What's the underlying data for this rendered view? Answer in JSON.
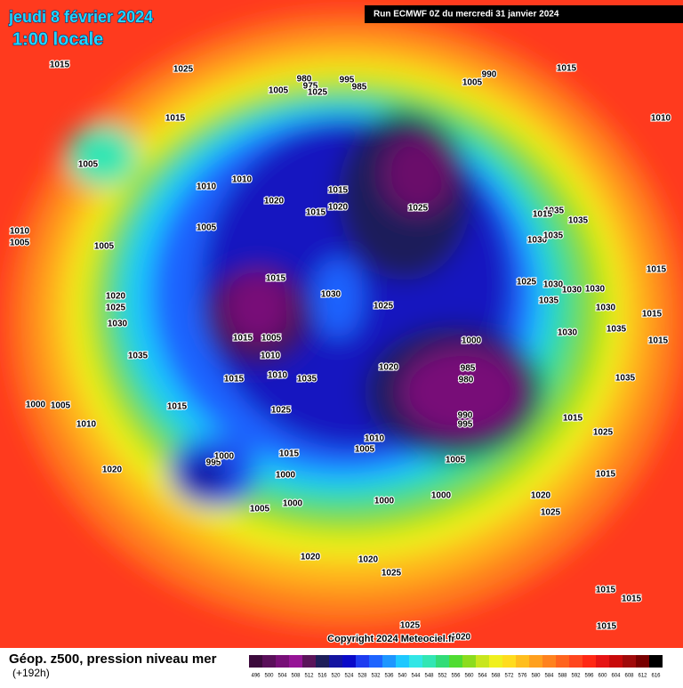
{
  "header": {
    "date": "jeudi 8 février 2024",
    "time": "1:00 locale",
    "run": "Run ECMWF 0Z du mercredi 31 janvier 2024"
  },
  "copyright": "Copyright 2024 Meteociel.fr",
  "footer": {
    "title": "Géop. z500, pression niveau mer",
    "lead": "(+192h)"
  },
  "colorbar": {
    "ticks": [
      496,
      500,
      504,
      508,
      512,
      516,
      520,
      524,
      528,
      532,
      536,
      540,
      544,
      548,
      552,
      556,
      560,
      564,
      568,
      572,
      576,
      580,
      584,
      588,
      592,
      596,
      600,
      604,
      608,
      612,
      616
    ],
    "colors": [
      "#3c0a3c",
      "#5a0f5a",
      "#780f78",
      "#961496",
      "#5a145a",
      "#1e1e5a",
      "#1414a0",
      "#0a0ac8",
      "#1e3cf0",
      "#1e64ff",
      "#1e96ff",
      "#1ec8ff",
      "#32e6e6",
      "#32e6b4",
      "#32dc78",
      "#50dc32",
      "#8cdc1e",
      "#c8e61e",
      "#f0f01e",
      "#ffdc1e",
      "#ffbe1e",
      "#ffa01e",
      "#ff821e",
      "#ff641e",
      "#ff461e",
      "#ff2814",
      "#e61414",
      "#c80a0a",
      "#a00a0a",
      "#780000",
      "#000000"
    ]
  },
  "isobar_labels": [
    1015,
    1025,
    1005,
    1015,
    1005,
    1010,
    1010,
    1020,
    1015,
    1015,
    1020,
    1005,
    1010,
    1005,
    1005,
    1020,
    1025,
    1030,
    1035,
    1015,
    1005,
    1010,
    1015,
    1010,
    1035,
    1030,
    1025,
    1015,
    1000,
    1005,
    1010,
    1020,
    995,
    1000,
    1015,
    1000,
    1005,
    1000,
    1000,
    1000,
    1005,
    1010,
    1005,
    995,
    990,
    985,
    980,
    1000,
    1020,
    1025,
    1025,
    1020,
    1025,
    1015,
    1025,
    1015,
    1035,
    1035,
    1030,
    1030,
    1015,
    1015,
    1015,
    1030,
    1030,
    1035,
    1030,
    1025,
    1030,
    1035,
    1035,
    1035,
    1015,
    1015,
    1010,
    1005,
    990,
    995,
    985,
    980,
    975,
    1025,
    1020,
    1020,
    1025,
    1025,
    1020,
    1015,
    1015,
    1015,
    1015
  ]
}
